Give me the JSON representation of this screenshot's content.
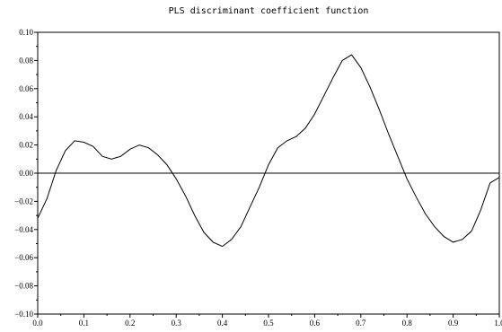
{
  "chart_data": {
    "type": "line",
    "title": "PLS discriminant coefficient function",
    "xlabel": "",
    "ylabel": "",
    "xlim": [
      0.0,
      1.0
    ],
    "ylim": [
      -0.1,
      0.1
    ],
    "grid": false,
    "legend": "none",
    "reference_line_y": 0.0,
    "x_ticks": [
      0.0,
      0.1,
      0.2,
      0.3,
      0.4,
      0.5,
      0.6,
      0.7,
      0.8,
      0.9,
      1.0
    ],
    "x_tick_labels": [
      "0.0",
      "0.1",
      "0.2",
      "0.3",
      "0.4",
      "0.5",
      "0.6",
      "0.7",
      "0.8",
      "0.9",
      "1.0"
    ],
    "y_ticks": [
      -0.1,
      -0.08,
      -0.06,
      -0.04,
      -0.02,
      0.0,
      0.02,
      0.04,
      0.06,
      0.08,
      0.1
    ],
    "y_tick_labels": [
      "−0.10",
      "−0.08",
      "−0.06",
      "−0.04",
      "−0.02",
      "0.00",
      "0.02",
      "0.04",
      "0.06",
      "0.08",
      "0.10"
    ],
    "series": [
      {
        "x": [
          0.0,
          0.02,
          0.04,
          0.06,
          0.08,
          0.1,
          0.12,
          0.14,
          0.16,
          0.18,
          0.2,
          0.22,
          0.24,
          0.26,
          0.28,
          0.3,
          0.32,
          0.34,
          0.36,
          0.38,
          0.4,
          0.42,
          0.44,
          0.46,
          0.48,
          0.5,
          0.52,
          0.54,
          0.56,
          0.58,
          0.6,
          0.62,
          0.64,
          0.66,
          0.68,
          0.7,
          0.72,
          0.74,
          0.76,
          0.78,
          0.8,
          0.82,
          0.84,
          0.86,
          0.88,
          0.9,
          0.92,
          0.94,
          0.96,
          0.98,
          1.0
        ],
        "values": [
          -0.032,
          -0.018,
          0.002,
          0.016,
          0.023,
          0.022,
          0.019,
          0.012,
          0.01,
          0.012,
          0.017,
          0.02,
          0.018,
          0.013,
          0.006,
          -0.004,
          -0.016,
          -0.03,
          -0.042,
          -0.049,
          -0.052,
          -0.047,
          -0.038,
          -0.024,
          -0.01,
          0.006,
          0.018,
          0.023,
          0.026,
          0.032,
          0.042,
          0.055,
          0.068,
          0.08,
          0.084,
          0.075,
          0.061,
          0.045,
          0.028,
          0.012,
          -0.004,
          -0.017,
          -0.029,
          -0.038,
          -0.045,
          -0.049,
          -0.047,
          -0.041,
          -0.026,
          -0.007,
          -0.003
        ]
      }
    ]
  }
}
